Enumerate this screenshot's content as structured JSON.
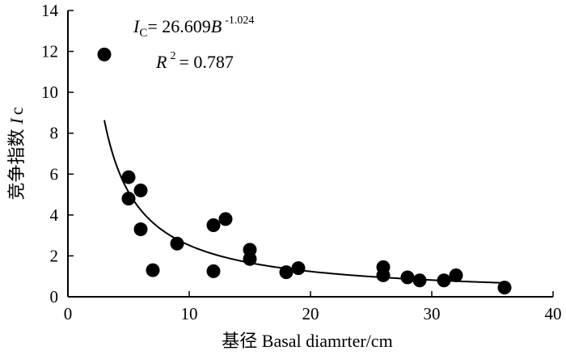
{
  "chart_data": {
    "type": "scatter",
    "xlabel": "基径 Basal diamrter/cm",
    "ylabel": "竞争指数 Ic",
    "ylabel_parts": {
      "cn": "竞争指数",
      "var": "I",
      "sub": "c"
    },
    "xlim": [
      0,
      40
    ],
    "ylim": [
      0,
      14
    ],
    "x_ticks": [
      0,
      10,
      20,
      30,
      40
    ],
    "y_ticks": [
      0,
      2,
      4,
      6,
      8,
      10,
      12,
      14
    ],
    "x_tick_labels": [
      "0",
      "10",
      "20",
      "30",
      "40"
    ],
    "y_tick_labels": [
      "0",
      "2",
      "4",
      "6",
      "8",
      "10",
      "12",
      "14"
    ],
    "grid": false,
    "points": [
      {
        "x": 3,
        "y": 11.85
      },
      {
        "x": 5,
        "y": 5.85
      },
      {
        "x": 5,
        "y": 4.8
      },
      {
        "x": 6,
        "y": 5.2
      },
      {
        "x": 6,
        "y": 3.3
      },
      {
        "x": 7,
        "y": 1.3
      },
      {
        "x": 9,
        "y": 2.6
      },
      {
        "x": 12,
        "y": 3.5
      },
      {
        "x": 12,
        "y": 1.25
      },
      {
        "x": 13,
        "y": 3.8
      },
      {
        "x": 15,
        "y": 2.3
      },
      {
        "x": 15,
        "y": 1.85
      },
      {
        "x": 18,
        "y": 1.2
      },
      {
        "x": 19,
        "y": 1.4
      },
      {
        "x": 26,
        "y": 1.45
      },
      {
        "x": 26,
        "y": 1.05
      },
      {
        "x": 28,
        "y": 0.95
      },
      {
        "x": 29,
        "y": 0.8
      },
      {
        "x": 31,
        "y": 0.8
      },
      {
        "x": 32,
        "y": 1.05
      },
      {
        "x": 36,
        "y": 0.45
      }
    ],
    "fit": {
      "type": "power",
      "a": 26.609,
      "b": -1.024,
      "x_range": [
        3,
        36
      ]
    },
    "equation": {
      "lhs_var": "I",
      "lhs_sub": "C",
      "rhs_text": "= 26.609",
      "rhs_var": "B",
      "exponent": "-1.024",
      "r2_var": "R",
      "r2_exp": "2",
      "r2_text": "= 0.787"
    },
    "colors": {
      "marker": "#000000",
      "line": "#000000",
      "axis": "#000000"
    }
  }
}
